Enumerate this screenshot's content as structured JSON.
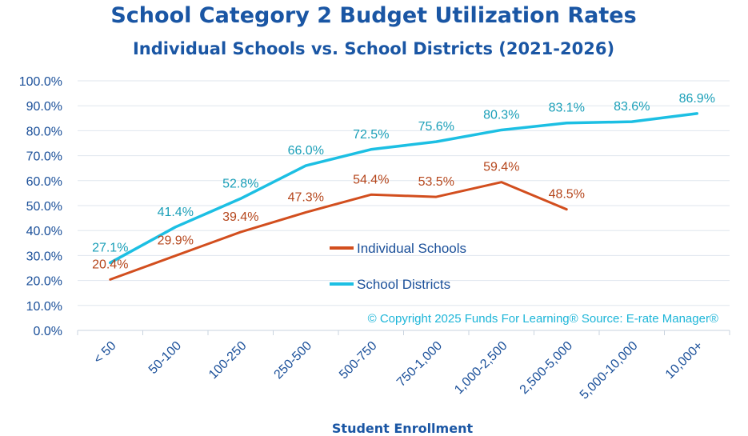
{
  "chart_data": {
    "type": "line",
    "title": "School Category 2 Budget Utilization Rates",
    "subtitle": "Individual Schools vs. School Districts (2021-2026)",
    "xlabel": "Student Enrollment",
    "ylabel": "",
    "categories": [
      "< 50",
      "50-100",
      "100-250",
      "250-500",
      "500-750",
      "750-1,000",
      "1,000-2,500",
      "2,500-5,000",
      "5,000-10,000",
      "10,000+"
    ],
    "y_ticks": [
      "0.0%",
      "10.0%",
      "20.0%",
      "30.0%",
      "40.0%",
      "50.0%",
      "60.0%",
      "70.0%",
      "80.0%",
      "90.0%",
      "100.0%"
    ],
    "ylim": [
      0,
      100
    ],
    "grid": true,
    "legend_position": "center",
    "series": [
      {
        "name": "Individual Schools",
        "color": "#d24e1e",
        "label_color": "#b5461c",
        "values": [
          20.4,
          29.9,
          39.4,
          47.3,
          54.4,
          53.5,
          59.4,
          48.5,
          null,
          null
        ],
        "labels": [
          "20.4%",
          "29.9%",
          "39.4%",
          "47.3%",
          "54.4%",
          "53.5%",
          "59.4%",
          "48.5%",
          null,
          null
        ]
      },
      {
        "name": "School Districts",
        "color": "#1cbfe3",
        "label_color": "#1a9fb8",
        "values": [
          27.1,
          41.4,
          52.8,
          66.0,
          72.5,
          75.6,
          80.3,
          83.1,
          83.6,
          86.9
        ],
        "labels": [
          "27.1%",
          "41.4%",
          "52.8%",
          "66.0%",
          "72.5%",
          "75.6%",
          "80.3%",
          "83.1%",
          "83.6%",
          "86.9%"
        ]
      }
    ],
    "annotation": "© Copyright 2025 Funds For Learning® Source: E-rate Manager®"
  }
}
